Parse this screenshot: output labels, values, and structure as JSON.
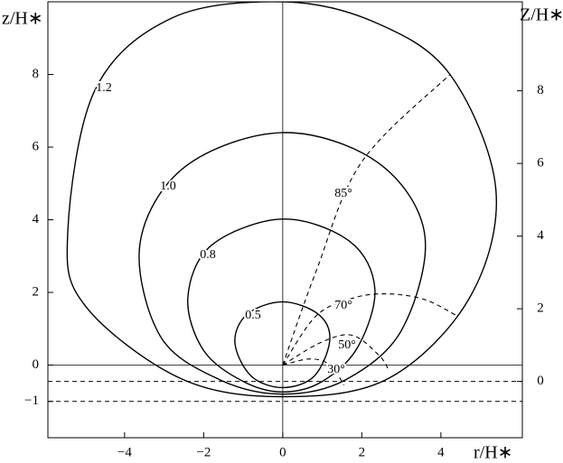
{
  "chart_data": {
    "type": "contour",
    "xlabel": "r/H∗",
    "ylabel": "z/H∗",
    "y2label": "Z/H∗",
    "xlim": [
      -5.94,
      6.06
    ],
    "ylim": [
      -2,
      10
    ],
    "y2lim": [
      -1.55,
      10.45
    ],
    "xticks": [
      {
        "value": -4,
        "label": "−4"
      },
      {
        "value": -2,
        "label": "−2"
      },
      0,
      2,
      4
    ],
    "yticks": [
      {
        "value": -1,
        "label": "−1"
      },
      0,
      2,
      4,
      6,
      8
    ],
    "y2ticks": [
      0,
      2,
      4,
      6,
      8
    ],
    "color": "#000000",
    "curves": [
      {
        "name": "1.2",
        "x": [
          0,
          2.3,
          4.23,
          5.39,
          4.73,
          2.67,
          0,
          -2.58,
          -4.98,
          -5.44,
          -4.75,
          -2.81
        ],
        "y": [
          10.0,
          9.45,
          8.0,
          4.84,
          1.86,
          -0.37,
          -0.87,
          -0.37,
          1.61,
          3.6,
          7.57,
          9.55
        ]
      },
      {
        "name": "1.0",
        "x": [
          0,
          2.4,
          3.59,
          3.02,
          1.6,
          0,
          -1.6,
          -3.1,
          -3.61,
          -2.47
        ],
        "y": [
          6.4,
          5.58,
          3.6,
          0.99,
          -0.4,
          -0.8,
          -0.4,
          0.8,
          3.35,
          5.46
        ]
      },
      {
        "name": "0.8",
        "x": [
          0,
          1.7,
          2.33,
          1.9,
          1.0,
          0,
          -1.0,
          -2.0,
          -2.4,
          -1.8
        ],
        "y": [
          4.02,
          3.4,
          2.1,
          0.5,
          -0.45,
          -0.74,
          -0.45,
          0.4,
          1.86,
          3.3
        ]
      },
      {
        "name": "0.5",
        "x": [
          0,
          0.9,
          1.19,
          0.8,
          0,
          -0.8,
          -1.21,
          -0.9
        ],
        "y": [
          1.74,
          1.4,
          0.7,
          -0.3,
          -0.62,
          -0.3,
          0.62,
          1.4
        ]
      }
    ],
    "rays": [
      {
        "name": "85°",
        "x": [
          0,
          0.85,
          1.99,
          4.23
        ],
        "y": [
          0,
          2.6,
          5.58,
          8.0
        ]
      },
      {
        "name": "70°",
        "x": [
          0,
          0.85,
          1.8,
          2.67,
          3.6,
          4.4
        ],
        "y": [
          0,
          1.36,
          1.85,
          1.96,
          1.8,
          1.36
        ]
      },
      {
        "name": "50°",
        "x": [
          0,
          0.96,
          1.76,
          2.45,
          2.67
        ],
        "y": [
          0,
          0.62,
          0.82,
          0.25,
          -0.12
        ]
      },
      {
        "name": "30°",
        "x": [
          0,
          0.7,
          1.2,
          1.55
        ],
        "y": [
          0,
          0.17,
          0.0,
          -0.55
        ]
      }
    ],
    "dashed_levels": [
      -0.45,
      -1
    ]
  }
}
